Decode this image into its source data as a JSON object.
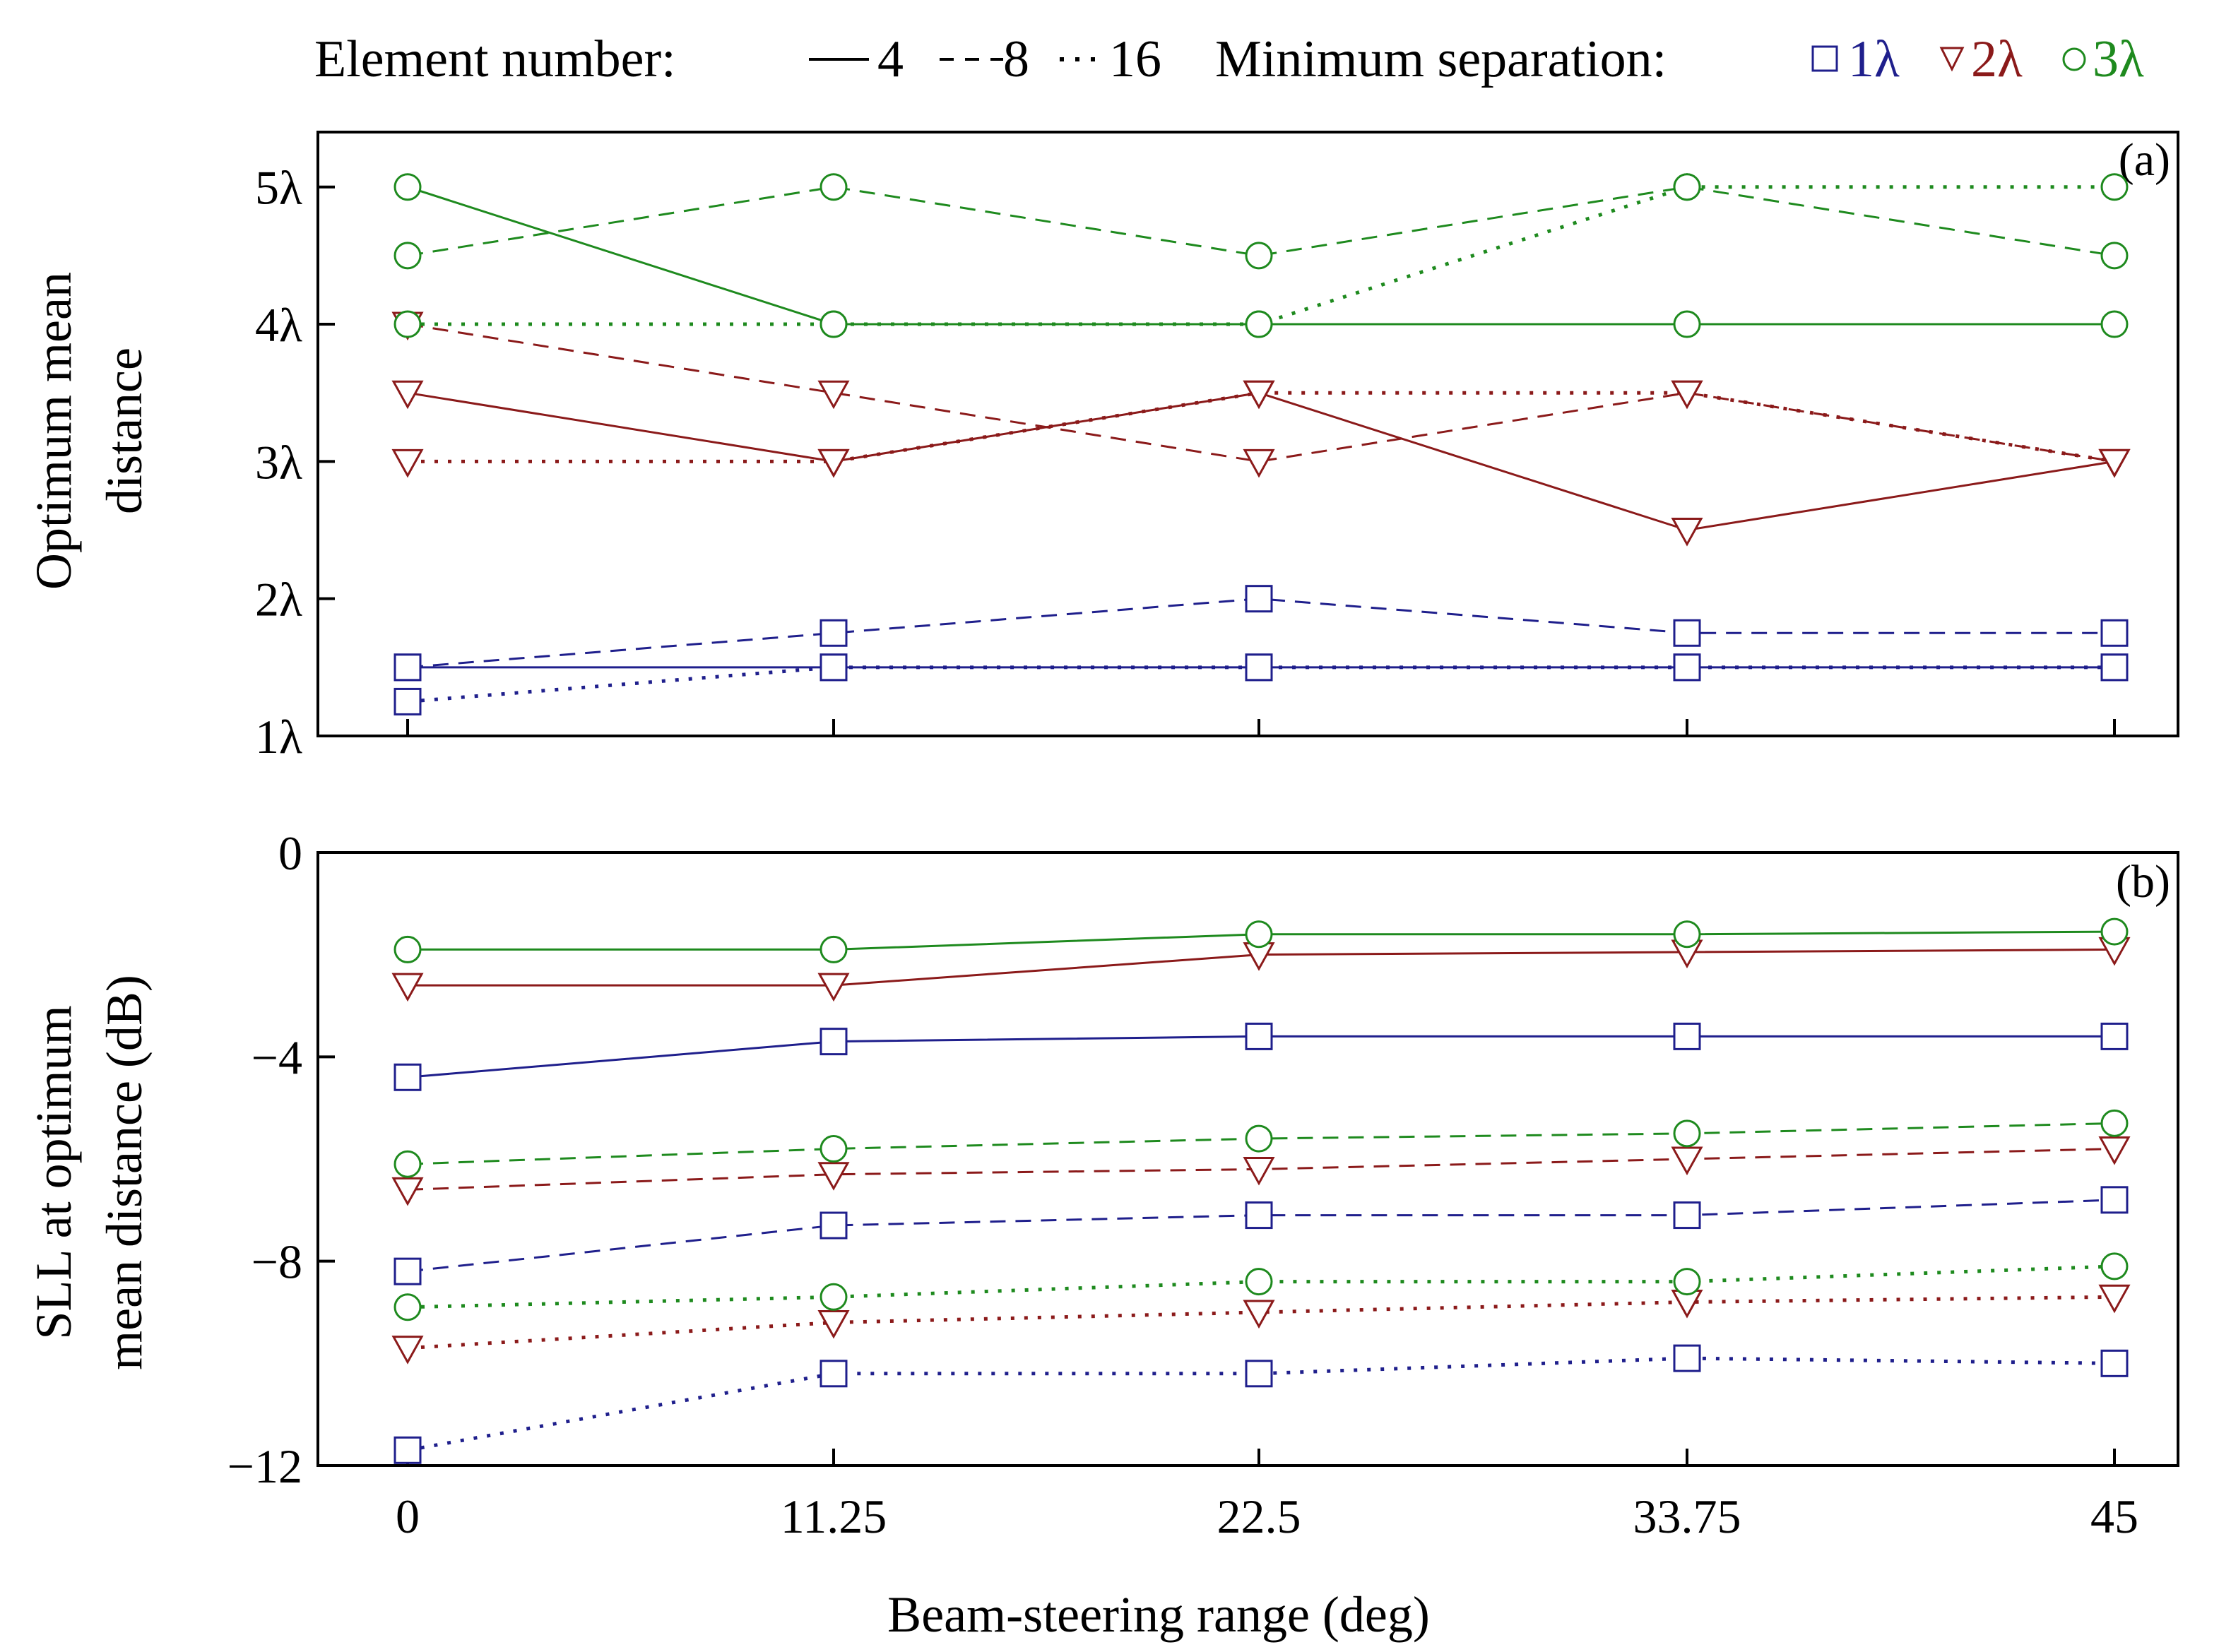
{
  "legend": {
    "element_title": "Element number:",
    "elements": [
      {
        "label": "4",
        "style": "solid"
      },
      {
        "label": "8",
        "style": "dashed"
      },
      {
        "label": "16",
        "style": "dotted"
      }
    ],
    "separation_title": "Minimum separation:",
    "separations": [
      {
        "label": "1λ",
        "marker": "square",
        "color": "#1f1f8c"
      },
      {
        "label": "2λ",
        "marker": "triangle-down",
        "color": "#8b1a1a"
      },
      {
        "label": "3λ",
        "marker": "circle",
        "color": "#1e8a1e"
      }
    ]
  },
  "chart_data": [
    {
      "type": "line",
      "panel_tag": "(a)",
      "ylabel_lines": [
        "Optimum mean",
        "distance"
      ],
      "x": [
        0,
        11.25,
        22.5,
        33.75,
        45
      ],
      "ylim": [
        1,
        5.4
      ],
      "yticks": [
        1,
        2,
        3,
        4,
        5
      ],
      "ytick_labels": [
        "1λ",
        "2λ",
        "3λ",
        "4λ",
        "5λ"
      ],
      "grid": false,
      "series": [
        {
          "name": "4 elements, 1λ",
          "style": "solid",
          "marker": "square",
          "color": "#1f1f8c",
          "values": [
            1.5,
            1.5,
            1.5,
            1.5,
            1.5
          ]
        },
        {
          "name": "8 elements, 1λ",
          "style": "dashed",
          "marker": "square",
          "color": "#1f1f8c",
          "values": [
            1.5,
            1.75,
            2.0,
            1.75,
            1.75
          ]
        },
        {
          "name": "16 elements, 1λ",
          "style": "dotted",
          "marker": "square",
          "color": "#1f1f8c",
          "values": [
            1.25,
            1.5,
            1.5,
            1.5,
            1.5
          ]
        },
        {
          "name": "4 elements, 2λ",
          "style": "solid",
          "marker": "triangle-down",
          "color": "#8b1a1a",
          "values": [
            3.5,
            3.0,
            3.5,
            2.5,
            3.0
          ]
        },
        {
          "name": "8 elements, 2λ",
          "style": "dashed",
          "marker": "triangle-down",
          "color": "#8b1a1a",
          "values": [
            4.0,
            3.5,
            3.0,
            3.5,
            3.0
          ]
        },
        {
          "name": "16 elements, 2λ",
          "style": "dotted",
          "marker": "triangle-down",
          "color": "#8b1a1a",
          "values": [
            3.0,
            3.0,
            3.5,
            3.5,
            3.0
          ]
        },
        {
          "name": "4 elements, 3λ",
          "style": "solid",
          "marker": "circle",
          "color": "#1e8a1e",
          "values": [
            5.0,
            4.0,
            4.0,
            4.0,
            4.0
          ]
        },
        {
          "name": "8 elements, 3λ",
          "style": "dashed",
          "marker": "circle",
          "color": "#1e8a1e",
          "values": [
            4.5,
            5.0,
            4.5,
            5.0,
            4.5
          ]
        },
        {
          "name": "16 elements, 3λ",
          "style": "dotted",
          "marker": "circle",
          "color": "#1e8a1e",
          "values": [
            4.0,
            4.0,
            4.0,
            5.0,
            5.0
          ]
        }
      ]
    },
    {
      "type": "line",
      "panel_tag": "(b)",
      "ylabel_lines": [
        "SLL at optimum",
        "mean distance (dB)"
      ],
      "xlabel": "Beam-steering range (deg)",
      "x": [
        0,
        11.25,
        22.5,
        33.75,
        45
      ],
      "xtick_labels": [
        "0",
        "11.25",
        "22.5",
        "33.75",
        "45"
      ],
      "ylim": [
        -12,
        0
      ],
      "yticks": [
        -12,
        -8,
        -4,
        0
      ],
      "ytick_labels": [
        "−12",
        "−8",
        "−4",
        "0"
      ],
      "grid": false,
      "series": [
        {
          "name": "4 elements, 1λ",
          "style": "solid",
          "marker": "square",
          "color": "#1f1f8c",
          "values": [
            -4.4,
            -3.7,
            -3.6,
            -3.6,
            -3.6
          ]
        },
        {
          "name": "8 elements, 1λ",
          "style": "dashed",
          "marker": "square",
          "color": "#1f1f8c",
          "values": [
            -8.2,
            -7.3,
            -7.1,
            -7.1,
            -6.8
          ]
        },
        {
          "name": "16 elements, 1λ",
          "style": "dotted",
          "marker": "square",
          "color": "#1f1f8c",
          "values": [
            -11.7,
            -10.2,
            -10.2,
            -9.9,
            -10.0
          ]
        },
        {
          "name": "4 elements, 2λ",
          "style": "solid",
          "marker": "triangle-down",
          "color": "#8b1a1a",
          "values": [
            -2.6,
            -2.6,
            -2.0,
            -1.95,
            -1.9
          ]
        },
        {
          "name": "8 elements, 2λ",
          "style": "dashed",
          "marker": "triangle-down",
          "color": "#8b1a1a",
          "values": [
            -6.6,
            -6.3,
            -6.2,
            -6.0,
            -5.8
          ]
        },
        {
          "name": "16 elements, 2λ",
          "style": "dotted",
          "marker": "triangle-down",
          "color": "#8b1a1a",
          "values": [
            -9.7,
            -9.2,
            -9.0,
            -8.8,
            -8.7
          ]
        },
        {
          "name": "4 elements, 3λ",
          "style": "solid",
          "marker": "circle",
          "color": "#1e8a1e",
          "values": [
            -1.9,
            -1.9,
            -1.6,
            -1.6,
            -1.55
          ]
        },
        {
          "name": "8 elements, 3λ",
          "style": "dashed",
          "marker": "circle",
          "color": "#1e8a1e",
          "values": [
            -6.1,
            -5.8,
            -5.6,
            -5.5,
            -5.3
          ]
        },
        {
          "name": "16 elements, 3λ",
          "style": "dotted",
          "marker": "circle",
          "color": "#1e8a1e",
          "values": [
            -8.9,
            -8.7,
            -8.4,
            -8.4,
            -8.1
          ]
        }
      ]
    }
  ]
}
